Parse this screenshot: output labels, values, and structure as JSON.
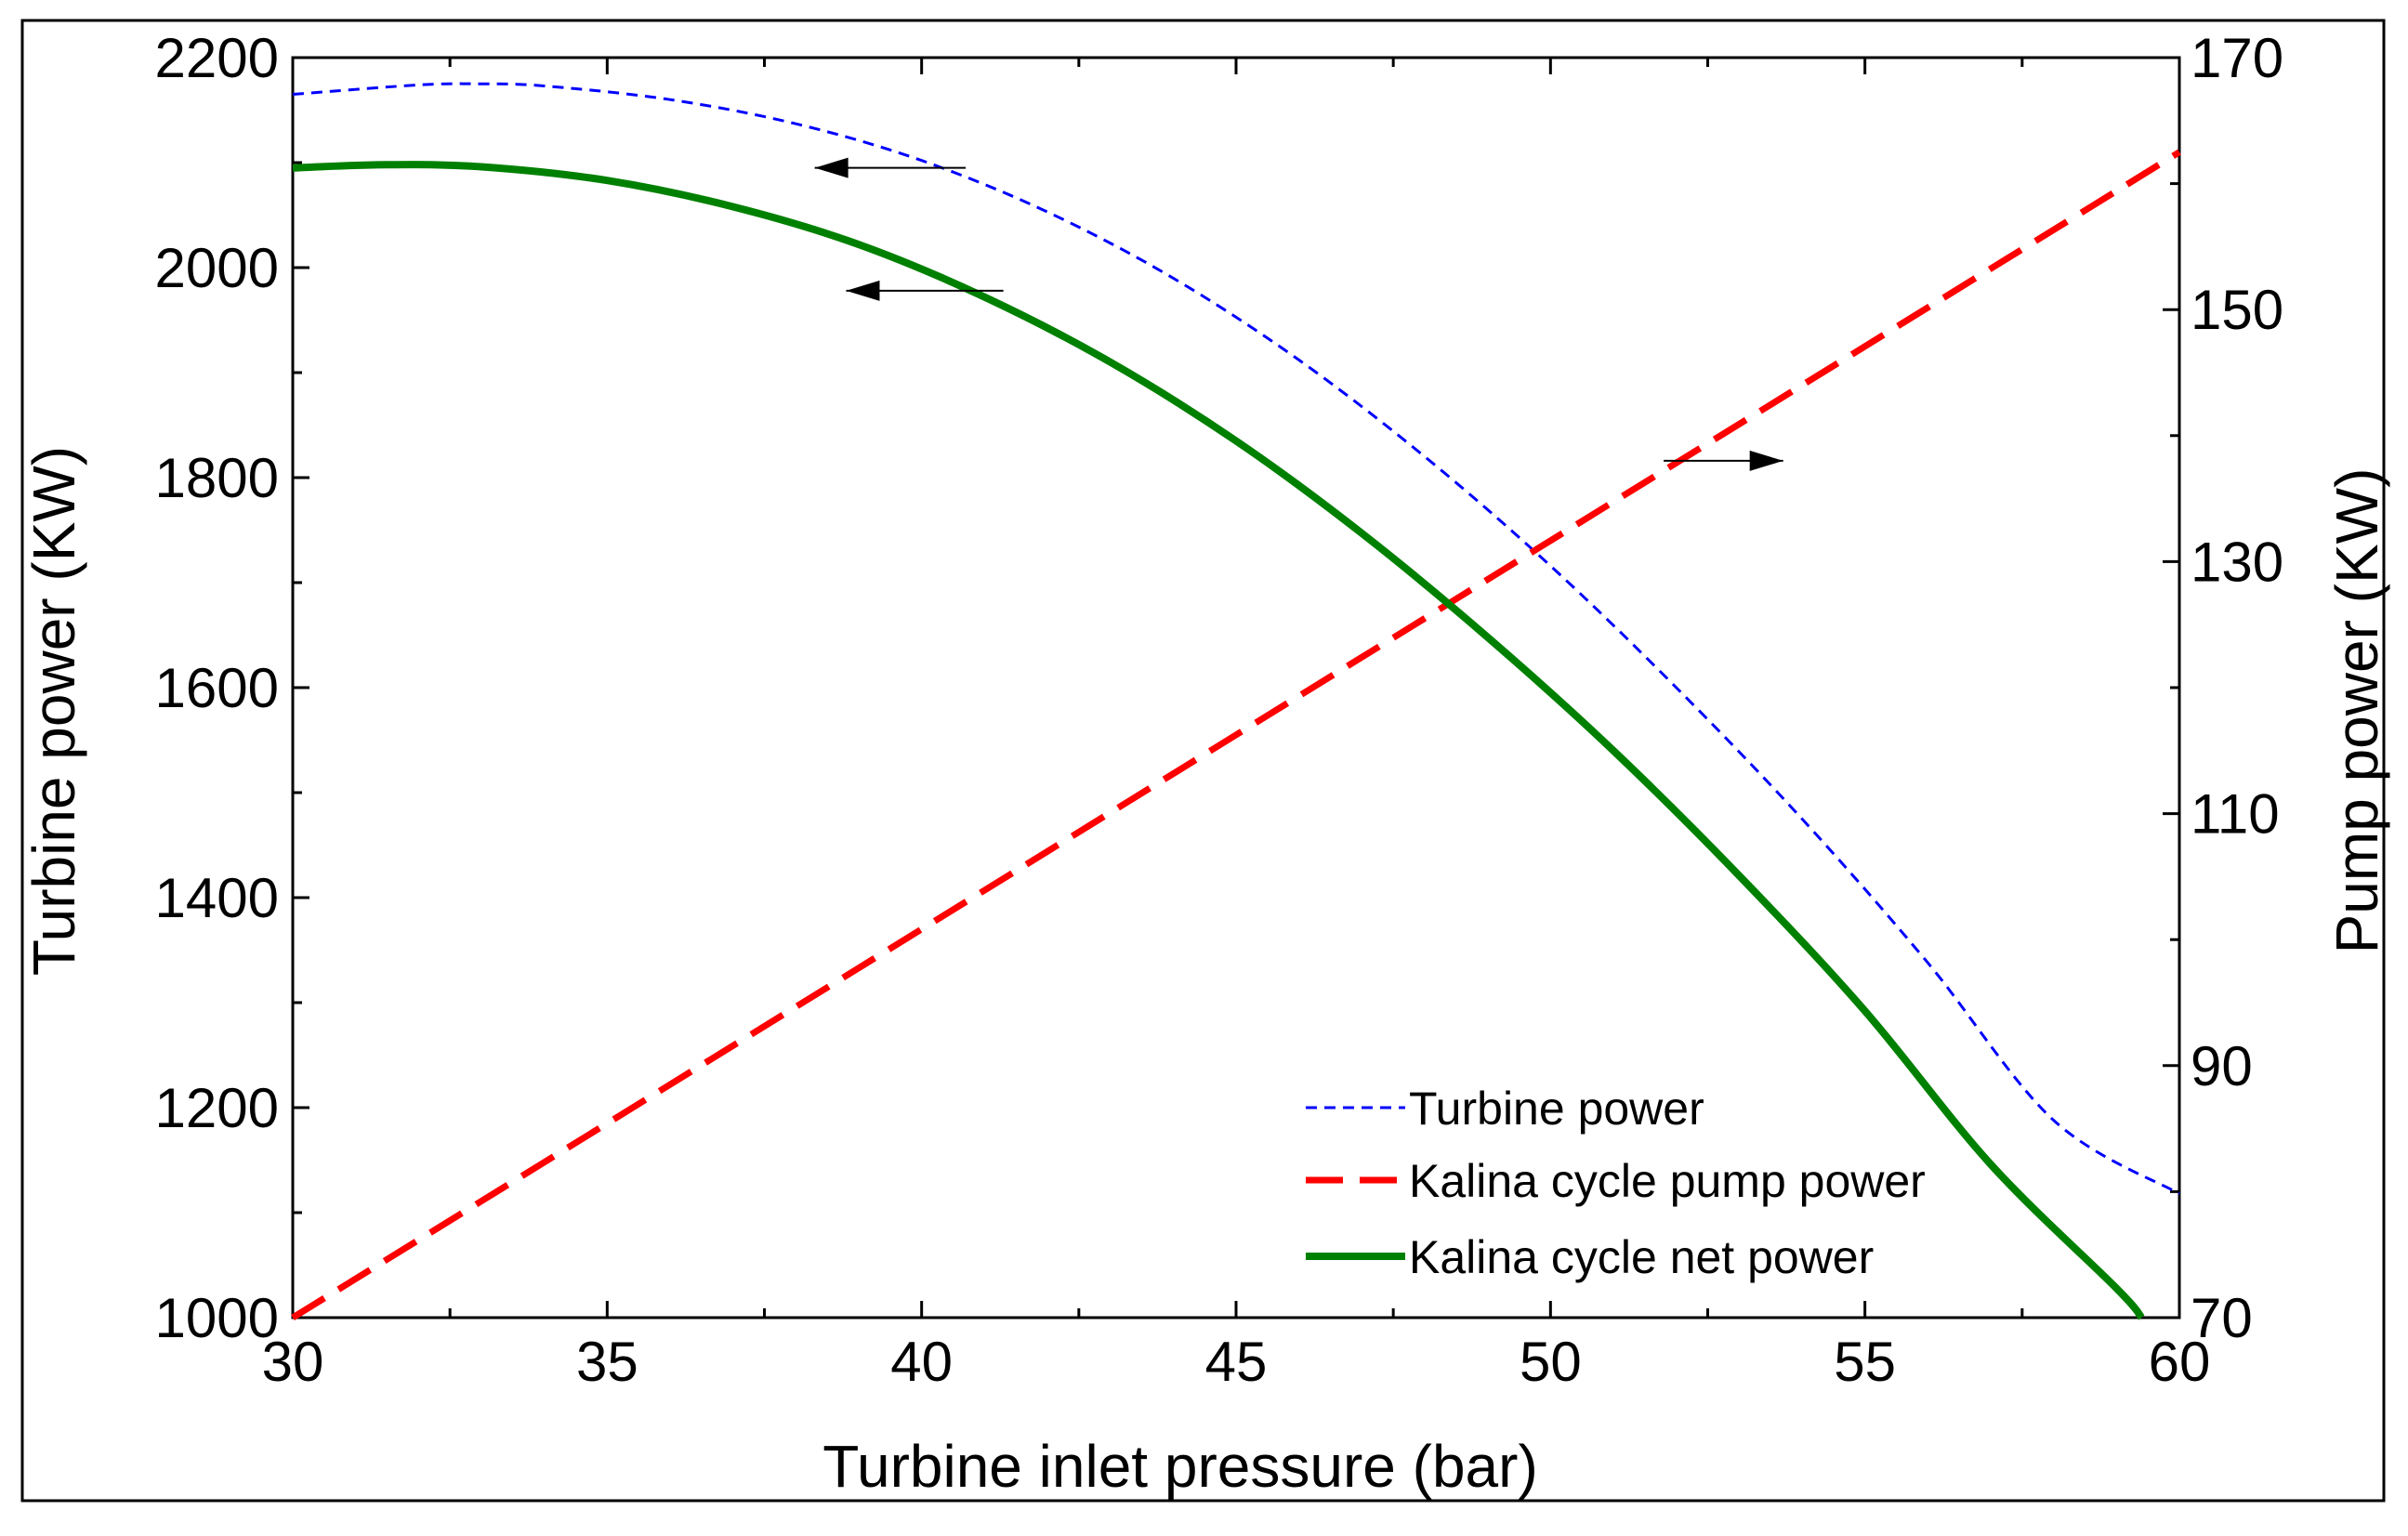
{
  "chart_data": {
    "type": "line",
    "title": "",
    "xlabel": "Turbine inlet pressure (bar)",
    "ylabel_left": "Turbine power (KW)",
    "ylabel_right": "Pump power (KW)",
    "xlim": [
      30,
      60
    ],
    "ylim_left": [
      1000,
      2200
    ],
    "ylim_right": [
      70,
      170
    ],
    "x_ticks": [
      30,
      35,
      40,
      45,
      50,
      55,
      60
    ],
    "x_tick_labels": [
      "30",
      "35",
      "40",
      "45",
      "50",
      "55",
      "60"
    ],
    "y_left_ticks": [
      1000,
      1200,
      1400,
      1600,
      1800,
      2000,
      2200
    ],
    "y_left_tick_labels": [
      "1000",
      "1200",
      "1400",
      "1600",
      "1800",
      "2000",
      "2200"
    ],
    "y_right_ticks": [
      70,
      90,
      110,
      130,
      150,
      170
    ],
    "y_right_tick_labels": [
      "70",
      "90",
      "110",
      "130",
      "150",
      "170"
    ],
    "grid": false,
    "legend_position": "bottom-right",
    "series": [
      {
        "name": "Turbine power",
        "axis": "left",
        "color": "#0000ff",
        "style": "short-dash",
        "x": [
          30,
          32,
          33,
          34,
          36,
          38,
          40,
          42,
          44,
          46,
          48,
          50,
          52,
          54,
          56,
          58,
          60
        ],
        "y": [
          2165,
          2174,
          2175,
          2173,
          2160,
          2137,
          2102,
          2053,
          1990,
          1912,
          1820,
          1716,
          1600,
          1475,
          1338,
          1188,
          1118
        ]
      },
      {
        "name": "Kalina cycle pump power",
        "axis": "right",
        "color": "#ff0000",
        "style": "long-dash",
        "x": [
          30,
          60
        ],
        "y": [
          70,
          162.5
        ]
      },
      {
        "name": "Kalina cycle net power",
        "axis": "left",
        "color": "#008000",
        "style": "solid",
        "x": [
          30,
          31.5,
          33,
          35,
          37,
          39,
          41,
          43,
          45,
          47,
          49,
          51,
          53,
          55,
          57,
          59,
          59.4
        ],
        "y": [
          2095,
          2098,
          2096,
          2083,
          2058,
          2022,
          1972,
          1910,
          1835,
          1747,
          1648,
          1540,
          1421,
          1292,
          1146,
          1028,
          1000
        ]
      }
    ],
    "annotations": [
      {
        "type": "arrow",
        "points_to": "left",
        "series": "Turbine power",
        "x_from": 40.7,
        "x_to": 38.3,
        "y": 2095,
        "axis": "left"
      },
      {
        "type": "arrow",
        "points_to": "left",
        "series": "Kalina cycle net power",
        "x_from": 41.3,
        "x_to": 38.8,
        "y": 1978,
        "axis": "left"
      },
      {
        "type": "arrow",
        "points_to": "right",
        "series": "Kalina cycle pump power",
        "x_from": 51.8,
        "x_to": 53.7,
        "y": 138,
        "axis": "right"
      }
    ]
  }
}
